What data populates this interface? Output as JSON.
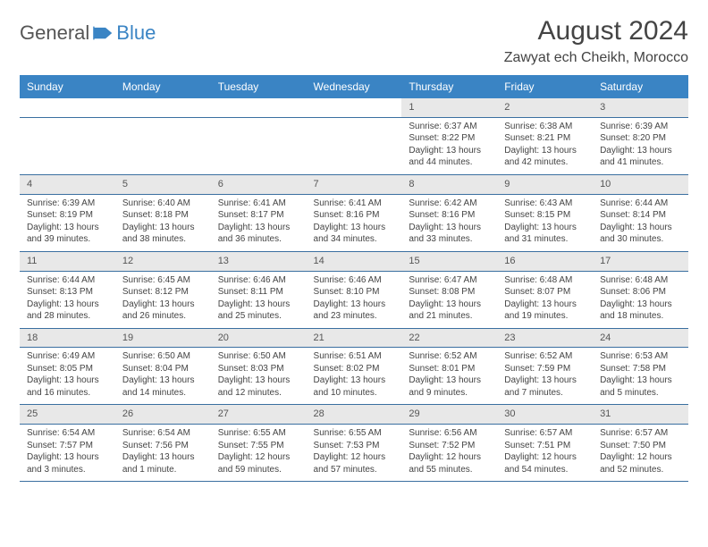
{
  "brand": {
    "name_a": "General",
    "name_b": "Blue"
  },
  "title": "August 2024",
  "location": "Zawyat ech Cheikh, Morocco",
  "colors": {
    "header_bg": "#3a84c4",
    "header_fg": "#ffffff",
    "daynum_bg": "#e8e8e8",
    "row_sep": "#3a6fa0",
    "text": "#444444",
    "page_bg": "#ffffff"
  },
  "typography": {
    "base_font": "Arial",
    "title_size": 30,
    "location_size": 16,
    "th_size": 12,
    "daynum_size": 11,
    "detail_size": 10
  },
  "weekdays": [
    "Sunday",
    "Monday",
    "Tuesday",
    "Wednesday",
    "Thursday",
    "Friday",
    "Saturday"
  ],
  "weeks": [
    [
      null,
      null,
      null,
      null,
      {
        "d": "1",
        "sr": "6:37 AM",
        "ss": "8:22 PM",
        "dl": "13 hours and 44 minutes."
      },
      {
        "d": "2",
        "sr": "6:38 AM",
        "ss": "8:21 PM",
        "dl": "13 hours and 42 minutes."
      },
      {
        "d": "3",
        "sr": "6:39 AM",
        "ss": "8:20 PM",
        "dl": "13 hours and 41 minutes."
      }
    ],
    [
      {
        "d": "4",
        "sr": "6:39 AM",
        "ss": "8:19 PM",
        "dl": "13 hours and 39 minutes."
      },
      {
        "d": "5",
        "sr": "6:40 AM",
        "ss": "8:18 PM",
        "dl": "13 hours and 38 minutes."
      },
      {
        "d": "6",
        "sr": "6:41 AM",
        "ss": "8:17 PM",
        "dl": "13 hours and 36 minutes."
      },
      {
        "d": "7",
        "sr": "6:41 AM",
        "ss": "8:16 PM",
        "dl": "13 hours and 34 minutes."
      },
      {
        "d": "8",
        "sr": "6:42 AM",
        "ss": "8:16 PM",
        "dl": "13 hours and 33 minutes."
      },
      {
        "d": "9",
        "sr": "6:43 AM",
        "ss": "8:15 PM",
        "dl": "13 hours and 31 minutes."
      },
      {
        "d": "10",
        "sr": "6:44 AM",
        "ss": "8:14 PM",
        "dl": "13 hours and 30 minutes."
      }
    ],
    [
      {
        "d": "11",
        "sr": "6:44 AM",
        "ss": "8:13 PM",
        "dl": "13 hours and 28 minutes."
      },
      {
        "d": "12",
        "sr": "6:45 AM",
        "ss": "8:12 PM",
        "dl": "13 hours and 26 minutes."
      },
      {
        "d": "13",
        "sr": "6:46 AM",
        "ss": "8:11 PM",
        "dl": "13 hours and 25 minutes."
      },
      {
        "d": "14",
        "sr": "6:46 AM",
        "ss": "8:10 PM",
        "dl": "13 hours and 23 minutes."
      },
      {
        "d": "15",
        "sr": "6:47 AM",
        "ss": "8:08 PM",
        "dl": "13 hours and 21 minutes."
      },
      {
        "d": "16",
        "sr": "6:48 AM",
        "ss": "8:07 PM",
        "dl": "13 hours and 19 minutes."
      },
      {
        "d": "17",
        "sr": "6:48 AM",
        "ss": "8:06 PM",
        "dl": "13 hours and 18 minutes."
      }
    ],
    [
      {
        "d": "18",
        "sr": "6:49 AM",
        "ss": "8:05 PM",
        "dl": "13 hours and 16 minutes."
      },
      {
        "d": "19",
        "sr": "6:50 AM",
        "ss": "8:04 PM",
        "dl": "13 hours and 14 minutes."
      },
      {
        "d": "20",
        "sr": "6:50 AM",
        "ss": "8:03 PM",
        "dl": "13 hours and 12 minutes."
      },
      {
        "d": "21",
        "sr": "6:51 AM",
        "ss": "8:02 PM",
        "dl": "13 hours and 10 minutes."
      },
      {
        "d": "22",
        "sr": "6:52 AM",
        "ss": "8:01 PM",
        "dl": "13 hours and 9 minutes."
      },
      {
        "d": "23",
        "sr": "6:52 AM",
        "ss": "7:59 PM",
        "dl": "13 hours and 7 minutes."
      },
      {
        "d": "24",
        "sr": "6:53 AM",
        "ss": "7:58 PM",
        "dl": "13 hours and 5 minutes."
      }
    ],
    [
      {
        "d": "25",
        "sr": "6:54 AM",
        "ss": "7:57 PM",
        "dl": "13 hours and 3 minutes."
      },
      {
        "d": "26",
        "sr": "6:54 AM",
        "ss": "7:56 PM",
        "dl": "13 hours and 1 minute."
      },
      {
        "d": "27",
        "sr": "6:55 AM",
        "ss": "7:55 PM",
        "dl": "12 hours and 59 minutes."
      },
      {
        "d": "28",
        "sr": "6:55 AM",
        "ss": "7:53 PM",
        "dl": "12 hours and 57 minutes."
      },
      {
        "d": "29",
        "sr": "6:56 AM",
        "ss": "7:52 PM",
        "dl": "12 hours and 55 minutes."
      },
      {
        "d": "30",
        "sr": "6:57 AM",
        "ss": "7:51 PM",
        "dl": "12 hours and 54 minutes."
      },
      {
        "d": "31",
        "sr": "6:57 AM",
        "ss": "7:50 PM",
        "dl": "12 hours and 52 minutes."
      }
    ]
  ],
  "labels": {
    "sunrise": "Sunrise:",
    "sunset": "Sunset:",
    "daylight": "Daylight:"
  }
}
